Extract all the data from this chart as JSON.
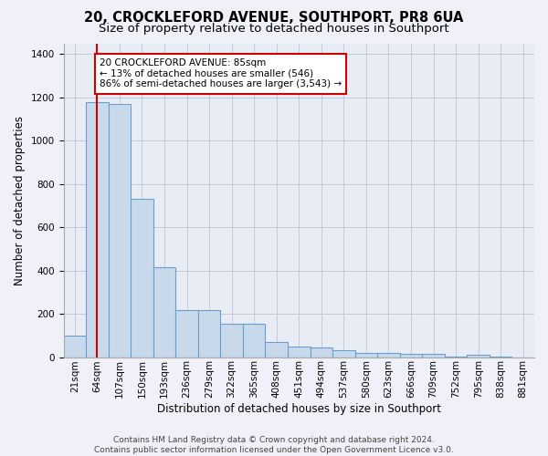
{
  "title": "20, CROCKLEFORD AVENUE, SOUTHPORT, PR8 6UA",
  "subtitle": "Size of property relative to detached houses in Southport",
  "xlabel": "Distribution of detached houses by size in Southport",
  "ylabel": "Number of detached properties",
  "footer_line1": "Contains HM Land Registry data © Crown copyright and database right 2024.",
  "footer_line2": "Contains public sector information licensed under the Open Government Licence v3.0.",
  "bin_labels": [
    "21sqm",
    "64sqm",
    "107sqm",
    "150sqm",
    "193sqm",
    "236sqm",
    "279sqm",
    "322sqm",
    "365sqm",
    "408sqm",
    "451sqm",
    "494sqm",
    "537sqm",
    "580sqm",
    "623sqm",
    "666sqm",
    "709sqm",
    "752sqm",
    "795sqm",
    "838sqm",
    "881sqm"
  ],
  "bar_heights": [
    100,
    1180,
    1170,
    730,
    415,
    218,
    218,
    155,
    155,
    70,
    50,
    45,
    30,
    20,
    20,
    15,
    15,
    2,
    10,
    2,
    0
  ],
  "bar_color": "#c9d9ec",
  "bar_edge_color": "#6a9fcb",
  "bar_linewidth": 0.8,
  "grid_color": "#c8c8d8",
  "background_color": "#e8edf5",
  "fig_background_color": "#f0f0f8",
  "red_line_bin": 1,
  "red_line_color": "#cc0000",
  "annotation_text_line1": "20 CROCKLEFORD AVENUE: 85sqm",
  "annotation_text_line2": "← 13% of detached houses are smaller (546)",
  "annotation_text_line3": "86% of semi-detached houses are larger (3,543) →",
  "ylim": [
    0,
    1450
  ],
  "yticks": [
    0,
    200,
    400,
    600,
    800,
    1000,
    1200,
    1400
  ],
  "title_fontsize": 10.5,
  "subtitle_fontsize": 9.5,
  "xlabel_fontsize": 8.5,
  "ylabel_fontsize": 8.5,
  "tick_fontsize": 7.5,
  "annotation_fontsize": 7.5,
  "footer_fontsize": 6.5
}
